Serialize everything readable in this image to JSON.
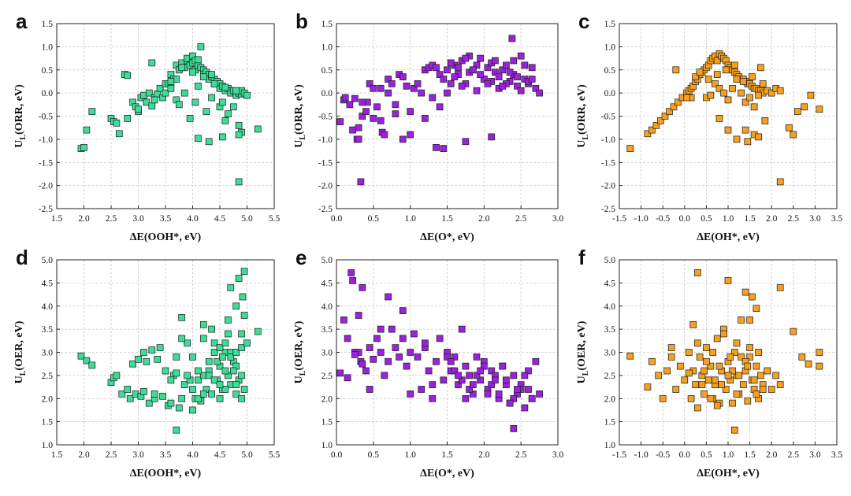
{
  "figure": {
    "panels": [
      "a",
      "b",
      "c",
      "d",
      "e",
      "f"
    ]
  },
  "chart_data": [
    {
      "panel": "a",
      "type": "scatter",
      "color": "#3ddc97",
      "xlabel": "ΔE(OOH*, eV)",
      "ylabel": "UL(ORR, eV)",
      "ylabel_main": "U",
      "ylabel_sub": "L",
      "ylabel_rest": "(ORR, eV)",
      "xlim": [
        1.5,
        5.5
      ],
      "ylim": [
        -2.5,
        1.5
      ],
      "xticks": [
        "1.5",
        "2.0",
        "2.5",
        "3.0",
        "3.5",
        "4.0",
        "4.5",
        "5.0",
        "5.5"
      ],
      "yticks": [
        "-2.5",
        "-2.0",
        "-1.5",
        "-1.0",
        "-0.5",
        "0.0",
        "0.5",
        "1.0",
        "1.5"
      ],
      "x": [
        1.95,
        2.0,
        2.05,
        2.15,
        2.5,
        2.55,
        2.6,
        2.65,
        2.75,
        2.8,
        2.9,
        2.95,
        3.0,
        3.05,
        3.1,
        3.15,
        3.2,
        3.25,
        3.3,
        3.35,
        3.4,
        3.45,
        3.5,
        3.5,
        3.55,
        3.6,
        3.6,
        3.65,
        3.7,
        3.7,
        3.75,
        3.8,
        3.85,
        3.9,
        3.9,
        3.95,
        4.0,
        4.0,
        4.05,
        4.05,
        4.1,
        4.1,
        4.15,
        4.2,
        4.2,
        4.25,
        4.3,
        4.3,
        4.35,
        4.4,
        4.4,
        4.45,
        4.5,
        4.5,
        4.55,
        4.6,
        4.6,
        4.65,
        4.7,
        4.7,
        4.75,
        4.8,
        4.8,
        4.85,
        4.9,
        4.9,
        4.95,
        5.0,
        3.7,
        3.95,
        4.05,
        4.25,
        4.5,
        4.65,
        4.85,
        4.9,
        3.6,
        3.85,
        4.1,
        4.35,
        4.55,
        4.75,
        3.8,
        4.0,
        4.2,
        4.4,
        4.6,
        4.8,
        4.1,
        4.3,
        4.55,
        4.85,
        3.75,
        3.25,
        2.8,
        4.85,
        5.2,
        4.15,
        4.35,
        3.0,
        3.3,
        4.6
      ],
      "y": [
        -1.2,
        -1.18,
        -0.8,
        -0.4,
        -0.55,
        -0.62,
        -0.65,
        -0.88,
        0.4,
        0.38,
        -0.2,
        -0.3,
        -0.4,
        -0.1,
        -0.05,
        -0.2,
        0.0,
        -0.28,
        -0.1,
        -0.02,
        0.1,
        -0.1,
        0.0,
        0.2,
        0.2,
        0.1,
        0.4,
        0.3,
        0.3,
        0.6,
        0.5,
        0.65,
        0.55,
        0.7,
        0.75,
        0.6,
        0.8,
        0.65,
        0.7,
        0.5,
        0.6,
        0.72,
        0.55,
        0.5,
        0.4,
        0.45,
        0.4,
        0.3,
        0.35,
        0.3,
        0.2,
        0.25,
        0.2,
        0.1,
        0.15,
        0.1,
        0.05,
        0.1,
        0.05,
        0.0,
        0.05,
        0.0,
        -0.05,
        0.0,
        -0.02,
        0.05,
        0.0,
        -0.05,
        -0.15,
        -0.55,
        -0.2,
        -0.4,
        -0.3,
        -0.45,
        -0.7,
        -0.85,
        0.25,
        0.0,
        0.15,
        -0.1,
        -0.2,
        -0.3,
        0.55,
        0.45,
        0.35,
        0.2,
        0.12,
        0.05,
        -0.98,
        -1.05,
        -0.95,
        -0.9,
        -0.25,
        0.65,
        -0.55,
        -1.92,
        -0.78,
        1.0,
        0.4,
        -0.35,
        -0.15,
        -0.6
      ]
    },
    {
      "panel": "b",
      "type": "scatter",
      "color": "#9922dd",
      "xlabel": "ΔE(O*, eV)",
      "ylabel": "UL(ORR, eV)",
      "ylabel_main": "U",
      "ylabel_sub": "L",
      "ylabel_rest": "(ORR, eV)",
      "xlim": [
        0.0,
        3.0
      ],
      "ylim": [
        -2.5,
        1.5
      ],
      "xticks": [
        "0.0",
        "0.5",
        "1.0",
        "1.5",
        "2.0",
        "2.5",
        "3.0"
      ],
      "yticks": [
        "-2.5",
        "-2.0",
        "-1.5",
        "-1.0",
        "-0.5",
        "0.0",
        "0.5",
        "1.0",
        "1.5"
      ],
      "x": [
        0.05,
        0.1,
        0.12,
        0.18,
        0.22,
        0.25,
        0.28,
        0.3,
        0.33,
        0.35,
        0.4,
        0.42,
        0.45,
        0.5,
        0.55,
        0.6,
        0.62,
        0.65,
        0.7,
        0.75,
        0.8,
        0.85,
        0.9,
        0.95,
        1.0,
        1.05,
        1.1,
        1.15,
        1.2,
        1.25,
        1.3,
        1.35,
        1.4,
        1.45,
        1.5,
        1.55,
        1.6,
        1.65,
        1.7,
        1.75,
        1.8,
        1.85,
        1.9,
        1.95,
        2.0,
        2.05,
        2.1,
        2.15,
        2.2,
        2.25,
        2.3,
        2.35,
        2.4,
        2.45,
        2.5,
        2.55,
        2.6,
        2.65,
        2.7,
        2.75,
        1.5,
        1.6,
        1.7,
        1.8,
        1.9,
        2.0,
        2.1,
        2.2,
        2.3,
        2.4,
        2.5,
        2.6,
        1.55,
        1.65,
        1.75,
        1.85,
        1.95,
        2.05,
        2.15,
        2.25,
        2.35,
        2.45,
        2.55,
        2.65,
        1.3,
        1.4,
        1.2,
        1.0,
        0.9,
        0.8,
        0.7,
        0.6,
        0.5,
        0.35,
        1.35,
        1.75,
        2.1,
        1.45,
        2.38,
        0.3
      ],
      "y": [
        -0.62,
        -0.15,
        -0.1,
        -0.25,
        -0.8,
        -0.12,
        -1.0,
        -0.75,
        -1.92,
        -0.5,
        -0.4,
        -0.2,
        0.2,
        0.1,
        -0.3,
        -0.6,
        -0.85,
        -0.9,
        0.3,
        0.2,
        -0.25,
        0.4,
        0.35,
        0.15,
        -0.4,
        0.1,
        0.2,
        0.0,
        0.5,
        0.55,
        0.6,
        0.55,
        0.4,
        0.3,
        0.5,
        0.2,
        0.6,
        0.4,
        0.7,
        0.2,
        0.8,
        0.5,
        0.6,
        0.75,
        0.3,
        0.55,
        0.65,
        0.45,
        0.35,
        0.5,
        0.6,
        0.25,
        0.7,
        0.15,
        0.8,
        0.3,
        0.2,
        0.55,
        0.1,
        0.0,
        0.0,
        0.35,
        0.15,
        0.45,
        0.05,
        0.3,
        0.25,
        0.1,
        0.2,
        0.4,
        0.05,
        0.25,
        0.65,
        0.55,
        0.75,
        0.5,
        0.4,
        0.2,
        0.7,
        0.15,
        0.45,
        0.35,
        0.6,
        0.3,
        -0.1,
        -0.3,
        -0.55,
        -0.9,
        -1.0,
        -0.45,
        0.0,
        0.1,
        -0.55,
        -0.2,
        -1.18,
        -1.05,
        -0.95,
        -1.2,
        1.18,
        -1.0
      ]
    },
    {
      "panel": "c",
      "type": "scatter",
      "color": "#f5a020",
      "xlabel": "ΔE(OH*, eV)",
      "ylabel": "UL(ORR, eV)",
      "ylabel_main": "U",
      "ylabel_sub": "L",
      "ylabel_rest": "(ORR, eV)",
      "xlim": [
        -1.5,
        3.5
      ],
      "ylim": [
        -2.5,
        1.5
      ],
      "xticks": [
        "-1.5",
        "-1.0",
        "-0.5",
        "0.0",
        "0.5",
        "1.0",
        "1.5",
        "2.0",
        "2.5",
        "3.0",
        "3.5"
      ],
      "yticks": [
        "-2.5",
        "-2.0",
        "-1.5",
        "-1.0",
        "-0.5",
        "0.0",
        "0.5",
        "1.0",
        "1.5"
      ],
      "x": [
        -1.25,
        -0.85,
        -0.75,
        -0.65,
        -0.55,
        -0.45,
        -0.35,
        -0.25,
        -0.15,
        -0.05,
        0.05,
        0.1,
        0.15,
        0.2,
        0.25,
        0.3,
        0.35,
        0.4,
        0.45,
        0.5,
        0.55,
        0.6,
        0.65,
        0.7,
        0.75,
        0.8,
        0.85,
        0.9,
        0.95,
        1.0,
        1.05,
        1.1,
        1.15,
        1.2,
        1.25,
        1.3,
        1.35,
        1.4,
        1.45,
        1.5,
        1.55,
        1.6,
        1.65,
        1.7,
        1.75,
        1.8,
        1.9,
        2.0,
        2.1,
        2.2,
        0.5,
        0.6,
        0.7,
        0.8,
        0.9,
        1.0,
        1.1,
        1.2,
        1.3,
        1.4,
        1.5,
        1.6,
        1.7,
        1.8,
        0.15,
        0.25,
        0.35,
        0.55,
        0.75,
        0.95,
        1.15,
        1.35,
        1.55,
        1.75,
        2.4,
        2.6,
        2.75,
        2.9,
        3.1,
        2.5,
        2.2,
        1.6,
        1.4,
        1.2,
        1.0,
        0.8,
        1.7,
        1.45,
        1.85,
        -0.2,
        0.05
      ],
      "y": [
        -1.2,
        -0.88,
        -0.8,
        -0.7,
        -0.6,
        -0.5,
        -0.4,
        -0.3,
        -0.2,
        -0.1,
        0.0,
        0.05,
        0.1,
        0.15,
        0.25,
        0.3,
        0.4,
        0.45,
        0.5,
        0.55,
        0.6,
        0.7,
        0.75,
        0.8,
        0.7,
        0.85,
        0.8,
        0.75,
        0.7,
        0.6,
        0.55,
        0.5,
        0.45,
        0.4,
        0.35,
        0.3,
        0.3,
        0.25,
        0.2,
        0.2,
        0.15,
        0.1,
        0.1,
        0.05,
        0.05,
        0.0,
        0.05,
        0.0,
        0.1,
        0.05,
        -0.1,
        -0.05,
        0.2,
        0.1,
        0.0,
        -0.15,
        0.1,
        0.3,
        0.0,
        -0.2,
        -0.1,
        -0.3,
        -0.05,
        0.2,
        -0.1,
        0.35,
        0.45,
        0.3,
        0.4,
        0.5,
        0.6,
        0.25,
        0.35,
        0.55,
        -0.75,
        -0.4,
        -0.3,
        -0.05,
        -0.35,
        -0.9,
        -1.92,
        -0.9,
        -0.8,
        -1.0,
        -0.8,
        -0.55,
        -0.95,
        -1.05,
        -0.6,
        0.5,
        -0.1
      ]
    },
    {
      "panel": "d",
      "type": "scatter",
      "color": "#3ddc97",
      "xlabel": "ΔE(OOH*, eV)",
      "ylabel": "UL(OER, eV)",
      "ylabel_main": "U",
      "ylabel_sub": "L",
      "ylabel_rest": "(OER, eV)",
      "xlim": [
        1.5,
        5.5
      ],
      "ylim": [
        1.0,
        5.0
      ],
      "xticks": [
        "1.5",
        "2.0",
        "2.5",
        "3.0",
        "3.5",
        "4.0",
        "4.5",
        "5.0",
        "5.5"
      ],
      "yticks": [
        "1.0",
        "1.5",
        "2.0",
        "2.5",
        "3.0",
        "3.5",
        "4.0",
        "4.5",
        "5.0"
      ],
      "x": [
        1.95,
        2.05,
        2.15,
        2.5,
        2.55,
        2.6,
        2.7,
        2.8,
        2.85,
        2.9,
        2.95,
        3.0,
        3.05,
        3.1,
        3.15,
        3.2,
        3.25,
        3.3,
        3.35,
        3.4,
        3.45,
        3.5,
        3.55,
        3.6,
        3.65,
        3.7,
        3.75,
        3.8,
        3.85,
        3.9,
        3.95,
        4.0,
        4.05,
        4.1,
        4.15,
        4.2,
        4.25,
        4.3,
        4.35,
        4.4,
        4.45,
        4.5,
        4.55,
        4.6,
        4.65,
        4.7,
        4.75,
        4.8,
        4.85,
        4.9,
        4.95,
        3.6,
        3.7,
        3.8,
        3.9,
        4.0,
        4.1,
        4.2,
        4.3,
        4.4,
        4.5,
        4.6,
        4.7,
        4.8,
        4.9,
        4.0,
        4.1,
        4.2,
        4.3,
        4.4,
        4.5,
        4.6,
        4.7,
        4.8,
        4.9,
        4.2,
        4.35,
        4.5,
        4.65,
        4.8,
        4.95,
        4.45,
        4.6,
        4.75,
        4.9,
        4.55,
        4.7,
        4.85,
        4.65,
        4.8,
        4.95,
        4.92,
        5.0,
        5.2,
        3.7,
        3.8,
        3.1,
        3.3
      ],
      "y": [
        2.92,
        2.82,
        2.72,
        2.35,
        2.45,
        2.5,
        2.1,
        2.2,
        2.0,
        2.75,
        2.1,
        2.85,
        2.05,
        2.15,
        2.8,
        1.9,
        3.05,
        2.0,
        2.85,
        3.1,
        2.05,
        2.6,
        1.85,
        1.9,
        2.5,
        2.55,
        1.8,
        2.0,
        2.3,
        3.2,
        2.4,
        2.2,
        2.0,
        2.4,
        1.95,
        2.5,
        2.2,
        2.6,
        2.1,
        3.0,
        2.4,
        2.7,
        2.2,
        3.0,
        2.5,
        2.3,
        2.8,
        2.1,
        2.4,
        3.4,
        2.2,
        2.4,
        2.9,
        3.3,
        2.5,
        1.75,
        2.0,
        3.6,
        2.5,
        3.2,
        2.0,
        2.6,
        3.0,
        2.3,
        2.0,
        2.9,
        2.6,
        2.1,
        2.8,
        2.4,
        3.1,
        2.2,
        2.9,
        2.7,
        2.5,
        3.3,
        3.5,
        2.3,
        3.7,
        3.0,
        3.8,
        2.8,
        3.2,
        2.6,
        3.1,
        2.9,
        4.4,
        4.6,
        3.4,
        4.0,
        4.75,
        4.2,
        3.2,
        3.45,
        1.32,
        3.75,
        3.0,
        2.1
      ]
    },
    {
      "panel": "e",
      "type": "scatter",
      "color": "#9922dd",
      "xlabel": "ΔE(O*, eV)",
      "ylabel": "UL(OER, eV)",
      "ylabel_main": "U",
      "ylabel_sub": "L",
      "ylabel_rest": "(OER, eV)",
      "xlim": [
        0.0,
        3.0
      ],
      "ylim": [
        1.0,
        5.0
      ],
      "xticks": [
        "0.0",
        "0.5",
        "1.0",
        "1.5",
        "2.0",
        "2.5",
        "3.0"
      ],
      "yticks": [
        "1.0",
        "1.5",
        "2.0",
        "2.5",
        "3.0",
        "3.5",
        "4.0",
        "4.5",
        "5.0"
      ],
      "x": [
        0.05,
        0.1,
        0.15,
        0.2,
        0.22,
        0.25,
        0.3,
        0.33,
        0.35,
        0.4,
        0.45,
        0.5,
        0.55,
        0.6,
        0.65,
        0.7,
        0.75,
        0.8,
        0.85,
        0.9,
        0.95,
        1.0,
        1.05,
        1.1,
        1.15,
        1.2,
        1.25,
        1.3,
        1.35,
        1.4,
        1.45,
        1.5,
        1.55,
        1.6,
        1.65,
        1.7,
        1.75,
        1.8,
        1.85,
        1.9,
        1.95,
        2.0,
        2.05,
        2.1,
        2.15,
        2.2,
        2.25,
        2.3,
        2.35,
        2.4,
        2.45,
        2.5,
        2.55,
        2.6,
        2.65,
        2.7,
        2.75,
        1.5,
        1.6,
        1.7,
        1.8,
        1.9,
        2.0,
        2.1,
        2.2,
        2.3,
        2.4,
        2.5,
        2.6,
        1.55,
        1.65,
        1.75,
        1.85,
        1.95,
        2.05,
        2.15,
        2.25,
        2.35,
        2.45,
        2.55,
        2.65,
        0.3,
        0.7,
        0.9,
        1.2,
        1.3,
        1.0,
        0.6,
        0.45,
        0.15,
        0.25,
        0.35,
        2.4
      ],
      "y": [
        2.55,
        3.7,
        3.3,
        4.72,
        4.55,
        3.0,
        3.8,
        2.8,
        4.4,
        2.6,
        3.1,
        2.85,
        3.3,
        3.0,
        2.5,
        4.2,
        3.5,
        3.1,
        2.9,
        3.3,
        2.7,
        3.0,
        3.4,
        2.9,
        2.2,
        3.1,
        2.6,
        2.0,
        2.8,
        3.3,
        2.4,
        3.0,
        2.6,
        2.9,
        2.3,
        3.5,
        2.7,
        2.5,
        2.1,
        2.9,
        2.4,
        2.8,
        2.2,
        2.6,
        2.5,
        2.0,
        2.7,
        2.3,
        1.9,
        2.5,
        2.1,
        2.3,
        1.8,
        2.2,
        2.0,
        2.8,
        2.1,
        2.9,
        2.6,
        2.4,
        2.2,
        2.5,
        2.7,
        2.3,
        2.1,
        2.4,
        2.0,
        2.2,
        2.6,
        2.8,
        2.5,
        2.0,
        2.3,
        2.6,
        2.1,
        2.4,
        2.7,
        1.9,
        2.2,
        2.5,
        2.0,
        3.0,
        2.8,
        3.9,
        3.2,
        2.3,
        2.1,
        3.5,
        2.2,
        2.45,
        2.95,
        2.75,
        1.35
      ]
    },
    {
      "panel": "f",
      "type": "scatter",
      "color": "#f5a020",
      "xlabel": "ΔE(OH*, eV)",
      "ylabel": "UL(OER, eV)",
      "ylabel_main": "U",
      "ylabel_sub": "L",
      "ylabel_rest": "(OER, eV)",
      "xlim": [
        -1.5,
        3.5
      ],
      "ylim": [
        1.0,
        5.0
      ],
      "xticks": [
        "-1.5",
        "-1.0",
        "-0.5",
        "0.0",
        "0.5",
        "1.0",
        "1.5",
        "2.0",
        "2.5",
        "3.0",
        "3.5"
      ],
      "yticks": [
        "1.0",
        "1.5",
        "2.0",
        "2.5",
        "3.0",
        "3.5",
        "4.0",
        "4.5",
        "5.0"
      ],
      "x": [
        -1.25,
        -0.85,
        -0.75,
        -0.6,
        -0.5,
        -0.4,
        -0.3,
        -0.2,
        -0.1,
        0.0,
        0.1,
        0.15,
        0.2,
        0.25,
        0.3,
        0.35,
        0.4,
        0.45,
        0.5,
        0.55,
        0.6,
        0.65,
        0.7,
        0.75,
        0.8,
        0.85,
        0.9,
        0.95,
        1.0,
        1.05,
        1.1,
        1.15,
        1.2,
        1.25,
        1.3,
        1.35,
        1.4,
        1.45,
        1.5,
        1.55,
        1.6,
        1.65,
        1.7,
        1.75,
        1.8,
        1.9,
        2.0,
        2.1,
        2.2,
        0.3,
        0.5,
        0.7,
        0.9,
        1.1,
        1.3,
        1.5,
        1.7,
        0.4,
        0.6,
        0.8,
        1.0,
        1.2,
        1.4,
        1.6,
        1.8,
        0.2,
        0.45,
        0.65,
        0.85,
        1.05,
        1.25,
        1.45,
        1.65,
        2.5,
        2.7,
        2.85,
        3.1,
        3.1,
        1.0,
        1.4,
        1.55,
        1.65,
        2.2,
        0.3,
        0.75,
        1.15,
        1.5,
        -0.3,
        0.1,
        1.2
      ],
      "y": [
        2.92,
        2.25,
        2.8,
        2.5,
        2.0,
        2.6,
        2.9,
        2.2,
        2.7,
        2.4,
        3.0,
        2.0,
        2.6,
        2.3,
        1.8,
        2.9,
        2.5,
        2.1,
        3.1,
        2.4,
        2.7,
        2.0,
        2.3,
        3.3,
        1.9,
        2.6,
        3.5,
        2.2,
        2.8,
        2.4,
        1.9,
        3.0,
        2.5,
        2.1,
        2.9,
        2.3,
        2.6,
        1.95,
        3.1,
        2.4,
        2.2,
        2.7,
        2.0,
        2.5,
        2.3,
        2.6,
        2.2,
        2.5,
        2.3,
        3.2,
        2.8,
        2.4,
        3.4,
        2.6,
        3.7,
        2.9,
        3.0,
        2.3,
        2.0,
        2.7,
        2.5,
        2.1,
        2.8,
        2.4,
        2.2,
        3.6,
        2.6,
        3.0,
        2.3,
        2.9,
        2.5,
        2.7,
        2.1,
        3.45,
        2.9,
        2.75,
        3.0,
        2.7,
        4.55,
        4.3,
        4.2,
        3.95,
        4.4,
        4.72,
        1.85,
        1.32,
        3.7,
        3.1,
        2.55,
        3.2
      ]
    }
  ]
}
